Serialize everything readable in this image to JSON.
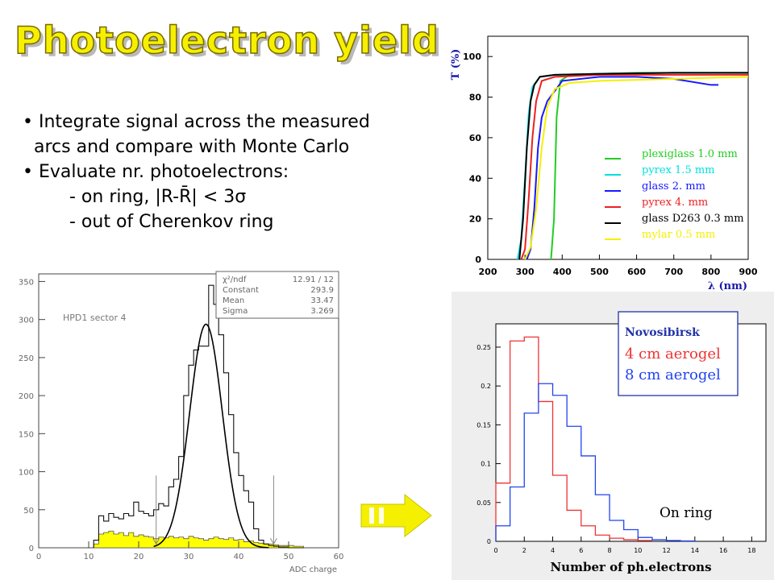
{
  "title": "Photoelectron yield",
  "bullets": [
    {
      "text": "• Integrate signal across the measured"
    },
    {
      "text": "arcs and compare with Monte Carlo"
    },
    {
      "text": "• Evaluate nr. photoelectrons:"
    },
    {
      "text": "- on ring,   |R-R̄| < 3σ"
    },
    {
      "text": "- out of Cherenkov ring"
    }
  ],
  "colors": {
    "title_fill": "#f5f000",
    "highlight_yellow": "#ffff00",
    "arrow": "#f5f000"
  },
  "chart_data": [
    {
      "id": "transmission",
      "type": "line",
      "ylabel": "T (%)",
      "xlabel": "λ (nm)",
      "xlim": [
        200,
        900
      ],
      "ylim": [
        0,
        110
      ],
      "xticks": [
        200,
        300,
        400,
        500,
        600,
        700,
        800,
        900
      ],
      "yticks": [
        0,
        20,
        40,
        60,
        80,
        100
      ],
      "legend_position": "bottom-right",
      "series": [
        {
          "name": "plexiglass 1.0 mm",
          "color": "#22cc22",
          "x": [
            370,
            378,
            385,
            395,
            420,
            500,
            600,
            700,
            800,
            860,
            890,
            900
          ],
          "y": [
            0,
            20,
            70,
            88,
            91,
            91.5,
            92,
            92,
            92,
            92,
            92,
            92
          ]
        },
        {
          "name": "pyrex 1.5 mm",
          "color": "#00e0e0",
          "x": [
            280,
            290,
            300,
            310,
            320,
            340,
            380,
            500,
            700,
            900
          ],
          "y": [
            0,
            10,
            40,
            72,
            85,
            90,
            91,
            91.5,
            92,
            92
          ]
        },
        {
          "name": "glass 2. mm",
          "color": "#1818ff",
          "x": [
            305,
            315,
            325,
            335,
            345,
            360,
            400,
            500,
            600,
            700,
            800,
            820
          ],
          "y": [
            0,
            5,
            25,
            55,
            70,
            78,
            88,
            90,
            90,
            89,
            86,
            86
          ]
        },
        {
          "name": "pyrex 4. mm",
          "color": "#ee2020",
          "x": [
            290,
            300,
            310,
            320,
            330,
            345,
            380,
            500,
            700,
            850,
            900
          ],
          "y": [
            0,
            5,
            30,
            60,
            78,
            88,
            90,
            91,
            91,
            91,
            91
          ]
        },
        {
          "name": "glass D263 0.3 mm",
          "color": "#000000",
          "x": [
            285,
            295,
            305,
            315,
            325,
            340,
            380,
            500,
            700,
            900
          ],
          "y": [
            0,
            20,
            55,
            78,
            86,
            90,
            91,
            91.5,
            92,
            92
          ]
        },
        {
          "name": "mylar 0.5 mm",
          "color": "#f5f000",
          "x": [
            300,
            315,
            330,
            345,
            360,
            380,
            420,
            500,
            700,
            900
          ],
          "y": [
            0,
            6,
            25,
            55,
            75,
            84,
            87,
            88,
            89,
            90
          ]
        }
      ]
    },
    {
      "id": "adc",
      "type": "bar",
      "xlabel": "ADC charge",
      "xlim": [
        0,
        60
      ],
      "ylim": [
        0,
        360
      ],
      "xticks": [
        0,
        10,
        20,
        30,
        40,
        50,
        60
      ],
      "yticks": [
        0,
        50,
        100,
        150,
        200,
        250,
        300,
        350
      ],
      "label": "HPD1 sector 4",
      "stats": [
        {
          "key": "χ²/ndf",
          "value": "12.91  /  12"
        },
        {
          "key": "Constant",
          "value": "293.9"
        },
        {
          "key": "Mean",
          "value": "33.47"
        },
        {
          "key": "Sigma",
          "value": "3.269"
        }
      ],
      "bin_width": 1,
      "x": [
        11,
        12,
        13,
        14,
        15,
        16,
        17,
        18,
        19,
        20,
        21,
        22,
        23,
        24,
        25,
        26,
        27,
        28,
        29,
        30,
        31,
        32,
        33,
        34,
        35,
        36,
        37,
        38,
        39,
        40,
        41,
        42,
        43,
        44,
        45,
        46,
        47,
        48,
        49,
        50,
        51,
        52
      ],
      "histogram": [
        10,
        42,
        35,
        45,
        40,
        38,
        45,
        42,
        60,
        48,
        45,
        42,
        50,
        58,
        55,
        80,
        90,
        120,
        200,
        240,
        260,
        265,
        265,
        345,
        320,
        280,
        230,
        175,
        125,
        95,
        75,
        60,
        25,
        10,
        5,
        3,
        2,
        1,
        1,
        0,
        0,
        0
      ],
      "out_of_ring": [
        5,
        18,
        20,
        22,
        18,
        20,
        16,
        20,
        15,
        17,
        15,
        14,
        12,
        14,
        13,
        15,
        13,
        14,
        12,
        15,
        13,
        12,
        10,
        12,
        14,
        12,
        11,
        13,
        10,
        11,
        8,
        9,
        7,
        6,
        5,
        5,
        4,
        3,
        3,
        3,
        2,
        2
      ],
      "fit": {
        "function": "gaussian",
        "constant": 293.9,
        "mean": 33.47,
        "sigma": 3.269
      },
      "cut_lines_x": [
        23.5,
        47
      ]
    },
    {
      "id": "photoelectrons",
      "type": "line",
      "xlabel": "Number of ph.electrons",
      "xlim": [
        0,
        19
      ],
      "ylim": [
        0,
        0.28
      ],
      "xticks": [
        0,
        2,
        4,
        6,
        8,
        10,
        12,
        14,
        16,
        18
      ],
      "yticks": [
        0,
        0.05,
        0.1,
        0.15,
        0.2,
        0.25
      ],
      "legend_position": "top-right",
      "legend_title": "Novosibirsk",
      "annotation": "On ring",
      "series": [
        {
          "name": "4 cm aerogel",
          "color": "#ee3333",
          "bin_edges": [
            0,
            1,
            2,
            3,
            4,
            5,
            6,
            7,
            8,
            9,
            10,
            11
          ],
          "values": [
            0.075,
            0.258,
            0.263,
            0.18,
            0.085,
            0.04,
            0.02,
            0.008,
            0.004,
            0.002,
            0.001
          ]
        },
        {
          "name": "8 cm aerogel",
          "color": "#2244ee",
          "bin_edges": [
            0,
            1,
            2,
            3,
            4,
            5,
            6,
            7,
            8,
            9,
            10,
            11,
            12,
            13,
            14
          ],
          "values": [
            0.02,
            0.07,
            0.165,
            0.203,
            0.188,
            0.148,
            0.11,
            0.06,
            0.027,
            0.015,
            0.005,
            0.002,
            0.001,
            0.0005
          ]
        }
      ]
    }
  ]
}
